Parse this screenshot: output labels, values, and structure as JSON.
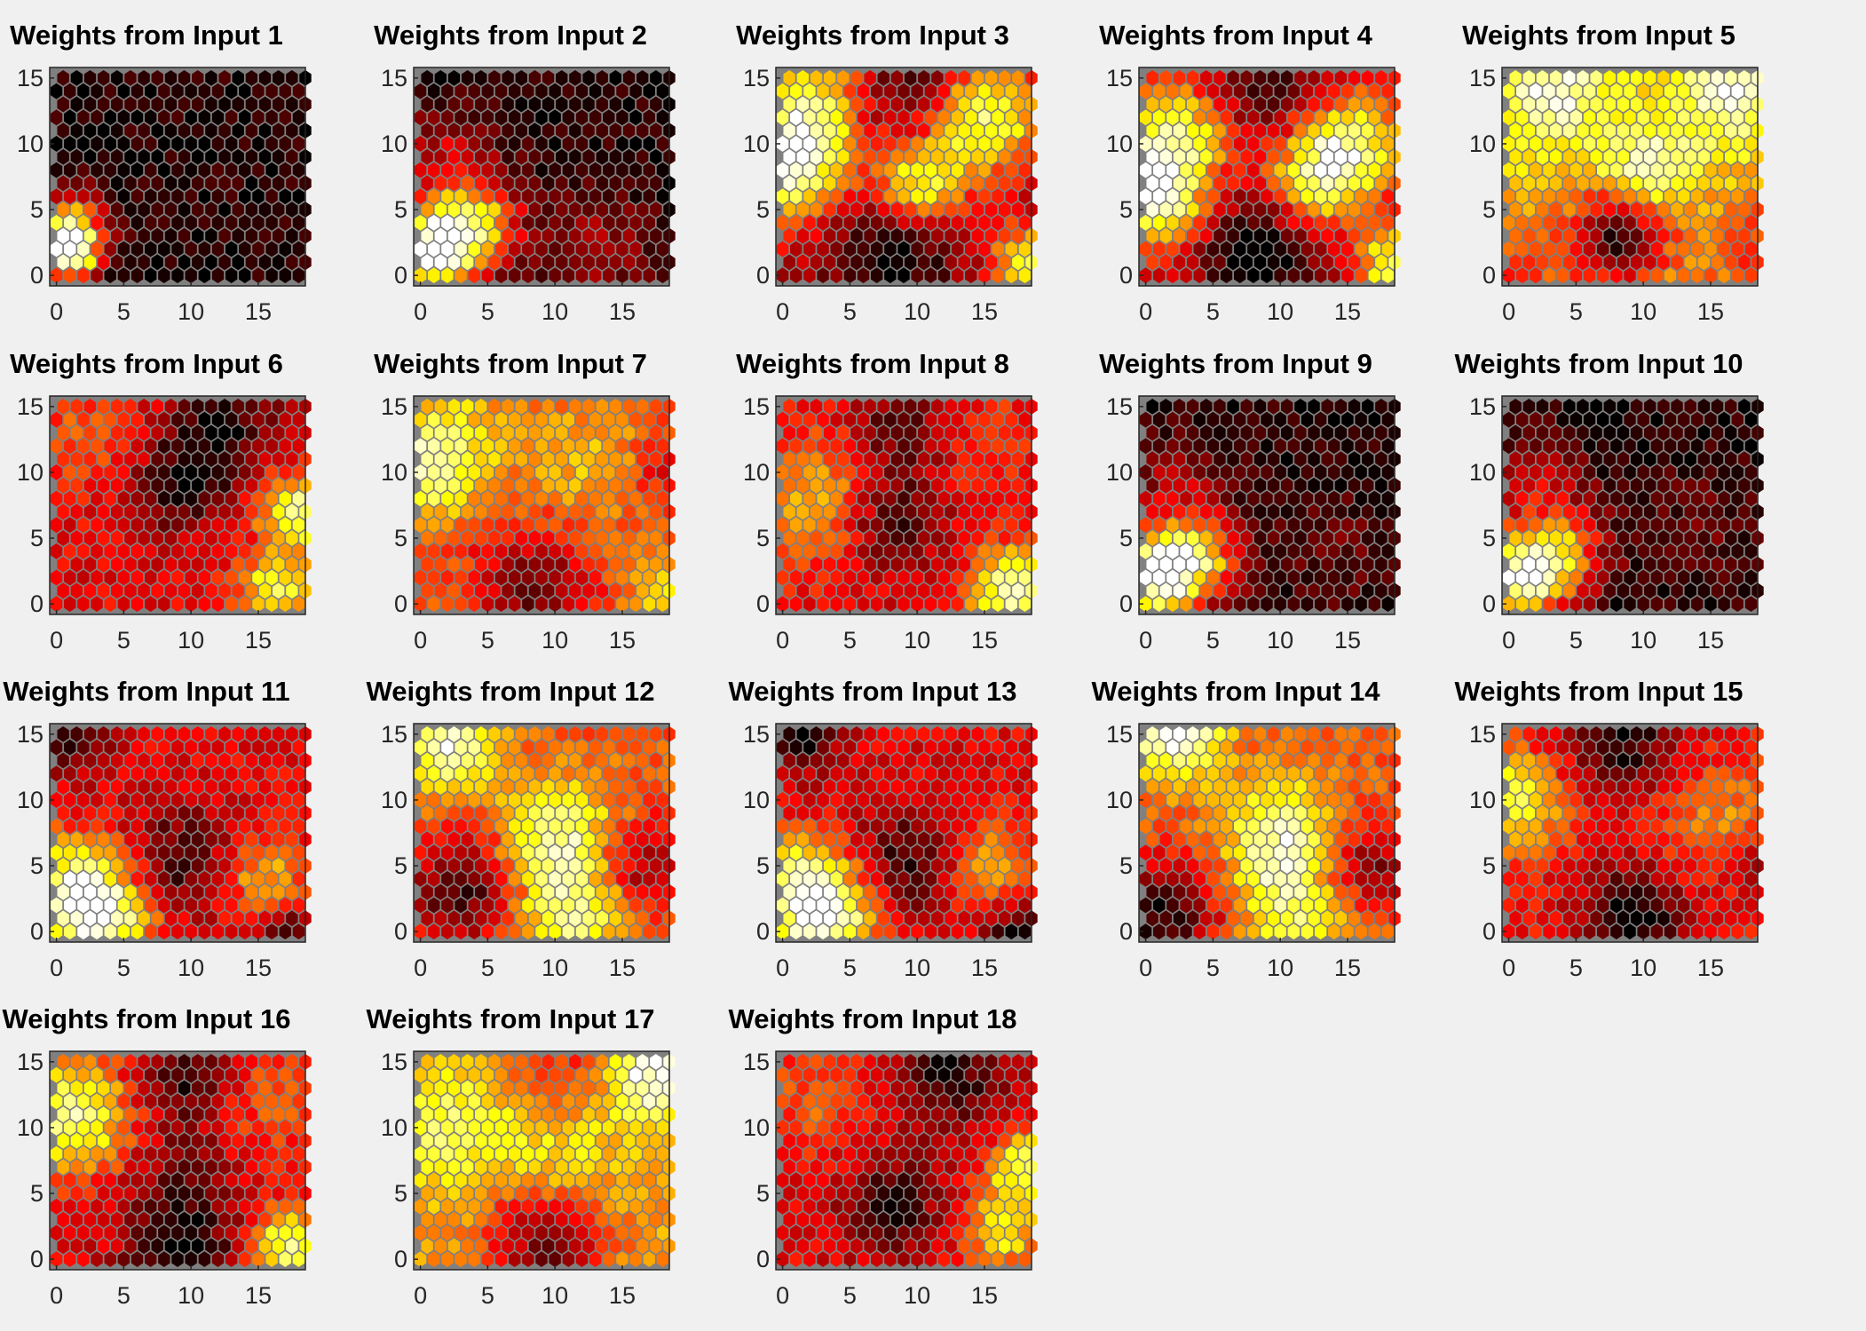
{
  "chart_data": {
    "type": "heatmap",
    "subtype": "som-weight-planes",
    "colormap": "hot",
    "background": "#f0f0f0",
    "axes_fill": "#808080",
    "grid": {
      "cols": 19,
      "rows": 16
    },
    "xlim": [
      -0.5,
      18.5
    ],
    "ylim": [
      -0.8,
      15.8
    ],
    "xticks": [
      "0",
      "5",
      "10",
      "15"
    ],
    "yticks": [
      "0",
      "5",
      "10",
      "15"
    ],
    "panels": [
      {
        "title": "Weights from Input 1",
        "pattern": [
          0.05,
          [
            [
              0.5,
              2,
              1.0,
              1.6
            ],
            [
              1,
              4,
              0.45,
              1.8
            ]
          ]
        ]
      },
      {
        "title": "Weights from Input 2",
        "pattern": [
          0.05,
          [
            [
              0.5,
              2,
              0.95,
              2.5
            ],
            [
              4,
              4,
              0.55,
              2.2
            ],
            [
              2,
              9,
              0.25,
              2.5
            ],
            [
              13,
              2,
              0.2,
              3
            ]
          ]
        ]
      },
      {
        "title": "Weights from Input 3",
        "pattern": [
          0.25,
          [
            [
              0,
              8,
              0.65,
              3
            ],
            [
              2,
              13,
              0.5,
              3
            ],
            [
              15,
              12,
              0.6,
              3
            ],
            [
              10,
              7,
              0.55,
              2.5
            ],
            [
              18,
              1,
              0.55,
              2
            ],
            [
              8,
              2,
              -0.3,
              3
            ],
            [
              9,
              14,
              -0.2,
              3
            ]
          ]
        ]
      },
      {
        "title": "Weights from Input 4",
        "pattern": [
          0.25,
          [
            [
              0,
              6,
              0.7,
              3
            ],
            [
              2,
              11,
              0.5,
              3
            ],
            [
              15,
              10,
              0.6,
              3
            ],
            [
              12,
              7,
              0.45,
              2.5
            ],
            [
              18,
              1,
              0.55,
              2
            ],
            [
              8,
              2,
              -0.3,
              3
            ],
            [
              9,
              14,
              -0.2,
              3
            ]
          ]
        ]
      },
      {
        "title": "Weights from Input 5",
        "pattern": [
          0.65,
          [
            [
              10,
              8,
              0.3,
              2.5
            ],
            [
              3,
              14,
              0.3,
              3
            ],
            [
              16,
              14,
              0.3,
              3
            ],
            [
              8,
              3,
              -0.6,
              2.5
            ],
            [
              18,
              2,
              -0.2,
              3
            ],
            [
              0,
              0,
              -0.2,
              3
            ]
          ]
        ]
      },
      {
        "title": "Weights from Input 6",
        "pattern": [
          0.35,
          [
            [
              18,
              7,
              0.55,
              2
            ],
            [
              16,
              1,
              0.45,
              2
            ],
            [
              2,
              13,
              0.15,
              3
            ],
            [
              9,
              9,
              -0.3,
              2.5
            ],
            [
              12,
              14,
              -0.3,
              3
            ]
          ]
        ]
      },
      {
        "title": "Weights from Input 7",
        "pattern": [
          0.5,
          [
            [
              0,
              10,
              0.35,
              2.5
            ],
            [
              2,
              13,
              0.2,
              3
            ],
            [
              18,
              1,
              0.2,
              2
            ],
            [
              12,
              11,
              0.15,
              3
            ],
            [
              8,
              1,
              -0.35,
              3
            ],
            [
              18,
              10,
              -0.15,
              2
            ]
          ]
        ]
      },
      {
        "title": "Weights from Input 8",
        "pattern": [
          0.35,
          [
            [
              17,
              1,
              0.6,
              2.2
            ],
            [
              2,
              8,
              0.3,
              3.5
            ],
            [
              14,
              12,
              0.15,
              3
            ],
            [
              8,
              6,
              -0.3,
              2.5
            ],
            [
              9,
              13,
              -0.25,
              3
            ]
          ]
        ]
      },
      {
        "title": "Weights from Input 9",
        "pattern": [
          0.05,
          [
            [
              0.5,
              2,
              0.95,
              2.5
            ],
            [
              4,
              4,
              0.5,
              2.2
            ],
            [
              2,
              9,
              0.2,
              2.5
            ],
            [
              14,
              4,
              0.1,
              3
            ]
          ]
        ]
      },
      {
        "title": "Weights from Input 10",
        "pattern": [
          0.05,
          [
            [
              0.5,
              2,
              0.9,
              2.5
            ],
            [
              4,
              4,
              0.45,
              2.2
            ],
            [
              2,
              9,
              0.25,
              2.5
            ],
            [
              14,
              6,
              0.1,
              3
            ]
          ]
        ]
      },
      {
        "title": "Weights from Input 11",
        "pattern": [
          0.35,
          [
            [
              3,
              1,
              0.6,
              3
            ],
            [
              1,
              4,
              0.35,
              2.5
            ],
            [
              15,
              4,
              0.3,
              2.5
            ],
            [
              9,
              5,
              -0.3,
              3
            ],
            [
              17,
              0,
              -0.3,
              1.5
            ],
            [
              1,
              15,
              -0.3,
              2
            ]
          ]
        ]
      },
      {
        "title": "Weights from Input 12",
        "pattern": [
          0.5,
          [
            [
              10,
              7,
              0.4,
              3
            ],
            [
              2,
              14,
              0.45,
              2.5
            ],
            [
              11,
              1,
              0.35,
              3
            ],
            [
              3,
              3,
              -0.4,
              3
            ],
            [
              16,
              5,
              -0.3,
              2.5
            ]
          ]
        ]
      },
      {
        "title": "Weights from Input 13",
        "pattern": [
          0.35,
          [
            [
              3,
              1,
              0.6,
              3
            ],
            [
              1,
              4,
              0.35,
              2.5
            ],
            [
              15,
              5,
              0.3,
              2.5
            ],
            [
              9,
              5,
              -0.3,
              3
            ],
            [
              17,
              0,
              -0.35,
              1.5
            ],
            [
              1,
              15,
              -0.35,
              2
            ]
          ]
        ]
      },
      {
        "title": "Weights from Input 14",
        "pattern": [
          0.5,
          [
            [
              10,
              7,
              0.45,
              3
            ],
            [
              2,
              15,
              0.5,
              2.5
            ],
            [
              11,
              1,
              0.3,
              3
            ],
            [
              1,
              1,
              -0.45,
              3
            ],
            [
              16,
              5,
              -0.35,
              2.5
            ]
          ]
        ]
      },
      {
        "title": "Weights from Input 15",
        "pattern": [
          0.4,
          [
            [
              0,
              10,
              0.45,
              2.5
            ],
            [
              16,
              8,
              0.2,
              3
            ],
            [
              8,
              15,
              -0.4,
              3
            ],
            [
              9,
              1,
              -0.4,
              3
            ],
            [
              18,
              5,
              -0.2,
              2
            ]
          ]
        ]
      },
      {
        "title": "Weights from Input 16",
        "pattern": [
          0.35,
          [
            [
              1,
              11,
              0.55,
              3
            ],
            [
              17,
              1,
              0.5,
              2
            ],
            [
              16,
              12,
              0.15,
              3
            ],
            [
              9,
              14,
              -0.3,
              2.5
            ],
            [
              9,
              1,
              -0.35,
              3
            ],
            [
              9,
              7,
              -0.15,
              2.5
            ]
          ]
        ]
      },
      {
        "title": "Weights from Input 17",
        "pattern": [
          0.6,
          [
            [
              17,
              14,
              0.4,
              2.5
            ],
            [
              2,
              10,
              0.25,
              3
            ],
            [
              10,
              8,
              0.15,
              3
            ],
            [
              9,
              1,
              -0.45,
              3
            ],
            [
              10,
              14,
              -0.2,
              2.5
            ]
          ]
        ]
      },
      {
        "title": "Weights from Input 18",
        "pattern": [
          0.35,
          [
            [
              18,
              7,
              0.5,
              2
            ],
            [
              16,
              2,
              0.4,
              2
            ],
            [
              2,
              12,
              0.15,
              3
            ],
            [
              8,
              4,
              -0.3,
              2.5
            ],
            [
              12,
              14,
              -0.3,
              3
            ]
          ]
        ]
      }
    ]
  }
}
